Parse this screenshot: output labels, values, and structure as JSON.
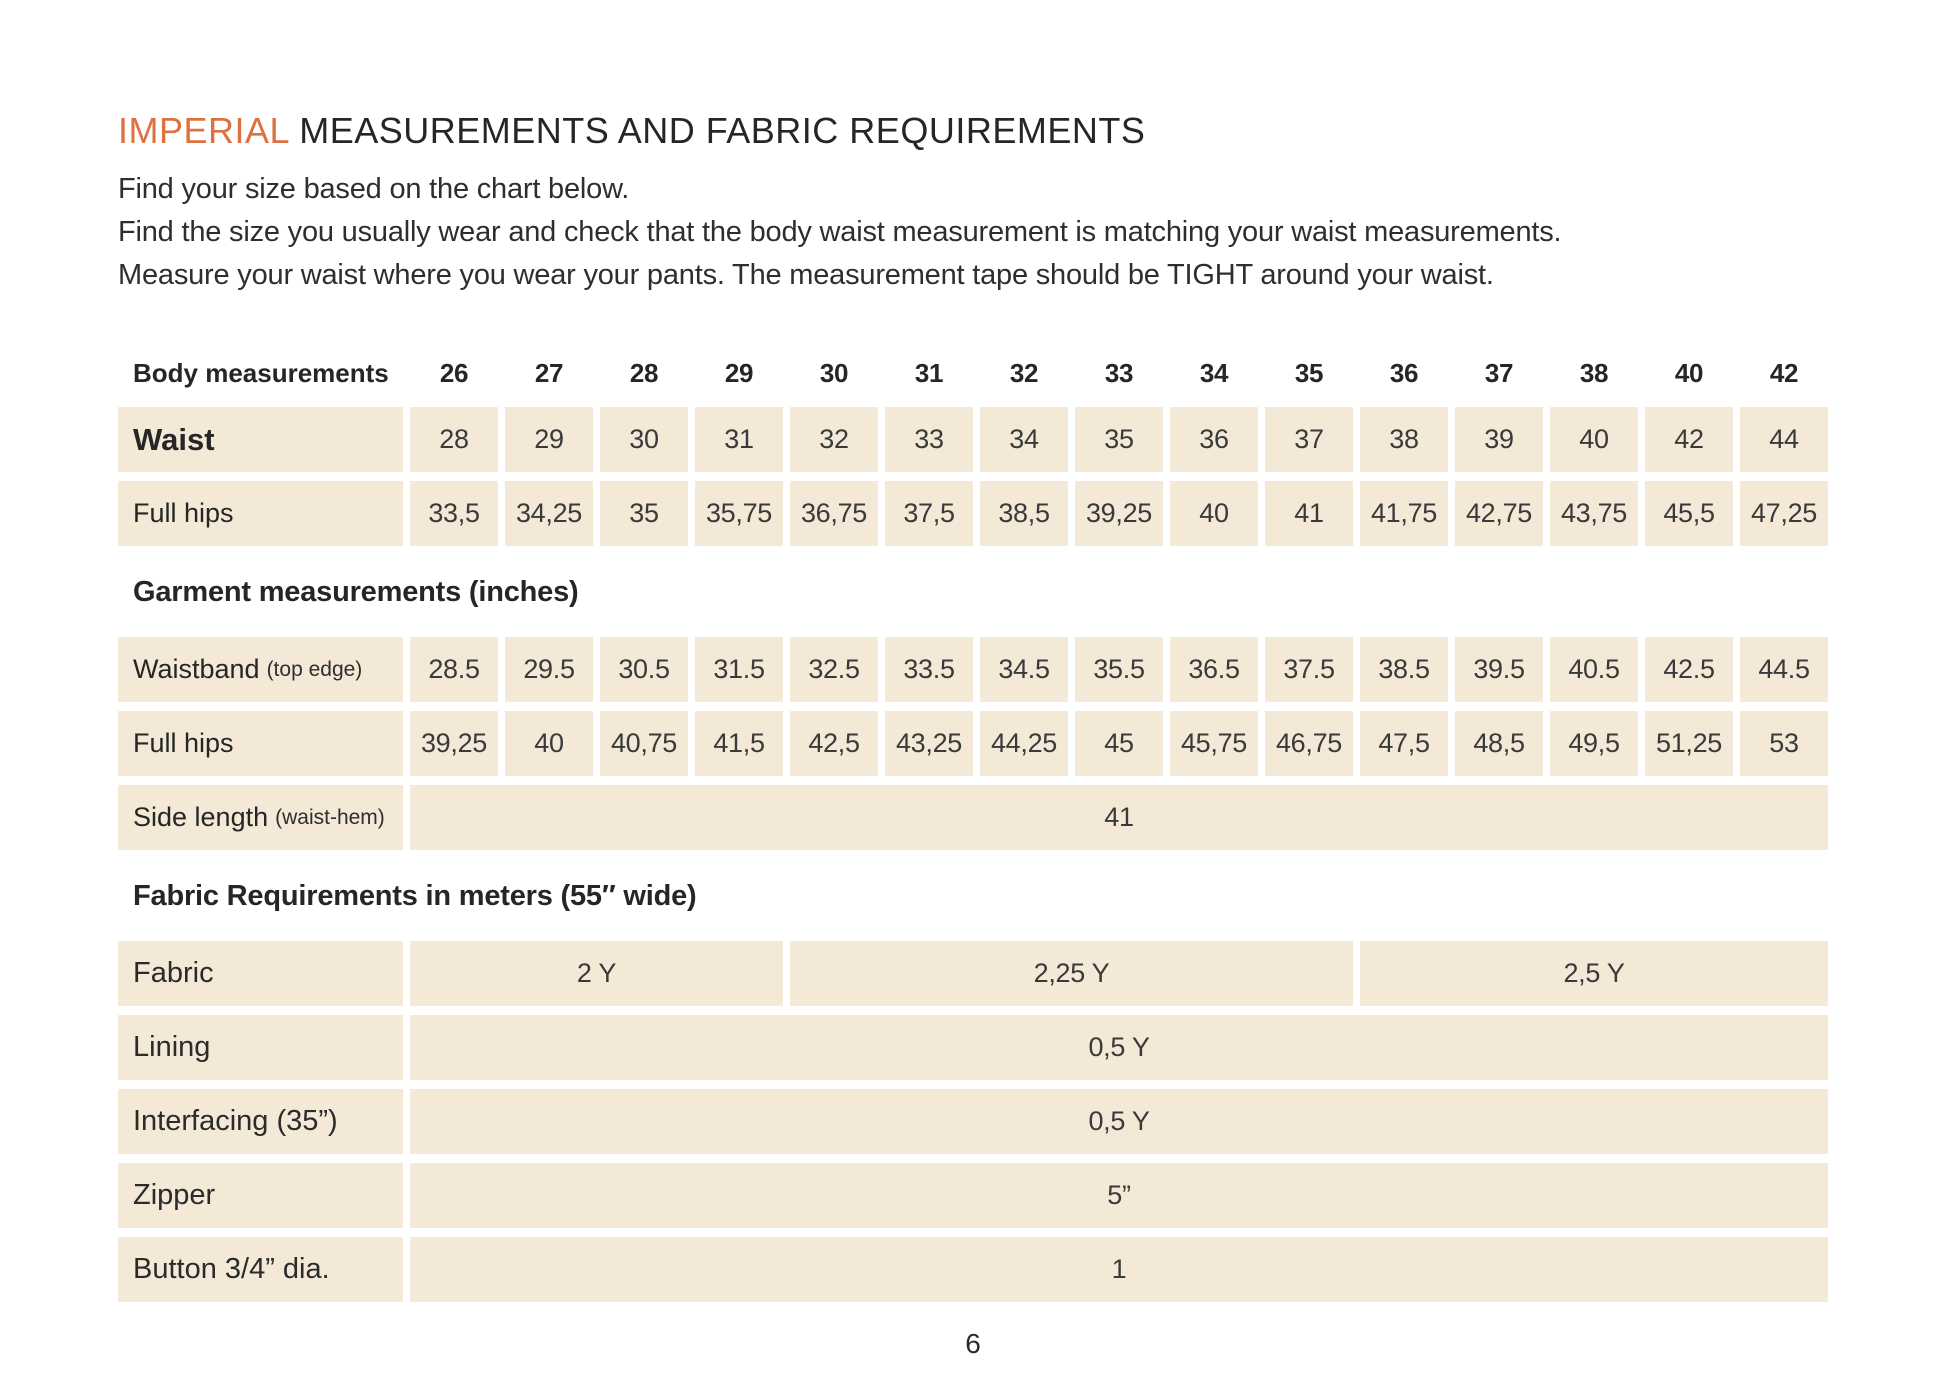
{
  "title": {
    "highlight": "IMPERIAL",
    "rest": " MEASUREMENTS AND FABRIC REQUIREMENTS"
  },
  "intro": {
    "lines": [
      "Find your size based on the chart below.",
      "Find the size you usually wear and check that the body waist measurement is matching your waist measurements.",
      "Measure your waist where you wear your pants. The measurement tape should be TIGHT around your waist."
    ]
  },
  "sizes_table": {
    "header_label": "Body measurements",
    "sizes": [
      "26",
      "27",
      "28",
      "29",
      "30",
      "31",
      "32",
      "33",
      "34",
      "35",
      "36",
      "37",
      "38",
      "40",
      "42"
    ],
    "waist": {
      "label": "Waist",
      "values": [
        "28",
        "29",
        "30",
        "31",
        "32",
        "33",
        "34",
        "35",
        "36",
        "37",
        "38",
        "39",
        "40",
        "42",
        "44"
      ]
    },
    "full_hips": {
      "label": "Full hips",
      "values": [
        "33,5",
        "34,25",
        "35",
        "35,75",
        "36,75",
        "37,5",
        "38,5",
        "39,25",
        "40",
        "41",
        "41,75",
        "42,75",
        "43,75",
        "45,5",
        "47,25"
      ]
    }
  },
  "garment_table": {
    "heading": "Garment measurements (inches)",
    "waistband": {
      "label": "Waistband",
      "note": "(top edge)",
      "values": [
        "28.5",
        "29.5",
        "30.5",
        "31.5",
        "32.5",
        "33.5",
        "34.5",
        "35.5",
        "36.5",
        "37.5",
        "38.5",
        "39.5",
        "40.5",
        "42.5",
        "44.5"
      ]
    },
    "full_hips": {
      "label": "Full hips",
      "values": [
        "39,25",
        "40",
        "40,75",
        "41,5",
        "42,5",
        "43,25",
        "44,25",
        "45",
        "45,75",
        "46,75",
        "47,5",
        "48,5",
        "49,5",
        "51,25",
        "53"
      ]
    },
    "side_length": {
      "label": "Side length",
      "note": "(waist-hem)",
      "value": "41"
    }
  },
  "fabric_table": {
    "heading": "Fabric Requirements in meters (55″ wide)",
    "fabric": {
      "label": "Fabric",
      "values": [
        "2 Y",
        "2,25 Y",
        "2,5 Y"
      ]
    },
    "lining": {
      "label": "Lining",
      "value": "0,5 Y"
    },
    "interfacing": {
      "label": "Interfacing (35”)",
      "value": "0,5 Y"
    },
    "zipper": {
      "label": "Zipper",
      "value": "5”"
    },
    "button": {
      "label": "Button 3/4” dia.",
      "value": "1"
    }
  },
  "footer": {
    "page_number": "6"
  },
  "colors": {
    "accent_orange": "#dd713f",
    "cell_beige": "#f3e9d6",
    "text_dark": "#262626"
  }
}
